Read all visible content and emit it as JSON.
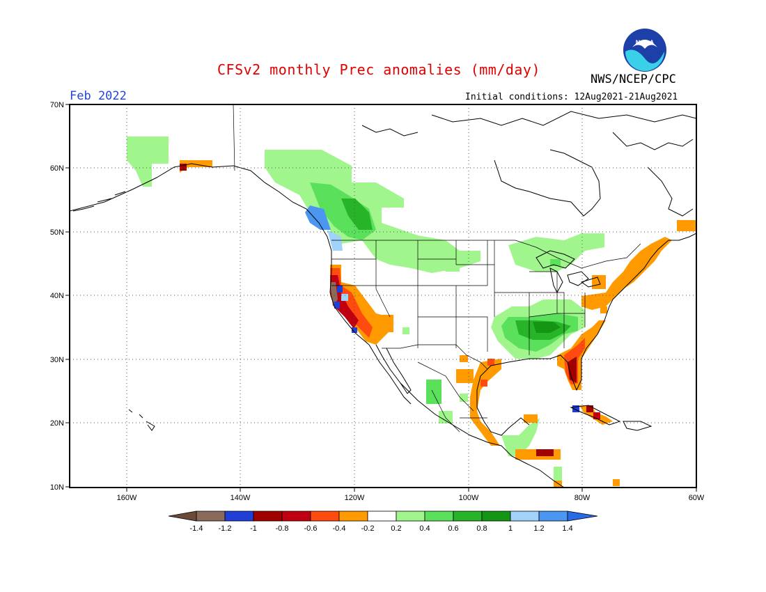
{
  "title": "CFSv2 monthly Prec anomalies (mm/day)",
  "organization": "NWS/NCEP/CPC",
  "logo_text": "NOAA",
  "valid_month": "Feb 2022",
  "initial_conditions": "Initial conditions: 12Aug2021-21Aug2021",
  "map": {
    "lon_range": [
      -170,
      -60
    ],
    "lat_range": [
      10,
      70
    ],
    "lat_labels": [
      "70N",
      "60N",
      "50N",
      "40N",
      "30N",
      "20N",
      "10N"
    ],
    "lon_labels": [
      "160W",
      "140W",
      "120W",
      "100W",
      "80W",
      "60W"
    ],
    "anomaly_regions": [
      {
        "region": "Alaska interior",
        "class": "0.2-0.4"
      },
      {
        "region": "Pacific Northwest / British Columbia coast",
        "class": "0.6-0.8"
      },
      {
        "region": "Northern California coast",
        "class": "-1.4--1.2"
      },
      {
        "region": "Southern California / Arizona",
        "class": "-0.4--0.2"
      },
      {
        "region": "Ohio / Tennessee Valley",
        "class": "0.6-0.8"
      },
      {
        "region": "Florida peninsula",
        "class": "-1--0.8"
      },
      {
        "region": "US Northeast / Maritimes",
        "class": "-0.4--0.2"
      },
      {
        "region": "Gulf of Mexico coast",
        "class": "-0.4--0.2"
      },
      {
        "region": "Cuba / Hispaniola",
        "class": "-1--0.8"
      }
    ]
  },
  "colorbar": {
    "tick_labels": [
      "-1.4",
      "-1.2",
      "-1",
      "-0.8",
      "-0.6",
      "-0.4",
      "-0.2",
      "0.2",
      "0.4",
      "0.6",
      "0.8",
      "1",
      "1.2",
      "1.4"
    ],
    "colors": [
      "#8c6a5a",
      "#1f3fd6",
      "#a00000",
      "#c00010",
      "#ff4a10",
      "#ff9a00",
      "#ffffff",
      "#a0f58c",
      "#5ae05a",
      "#28b428",
      "#149614",
      "#a0d2fa",
      "#4a96f0"
    ],
    "low_end_color": "#6b4a3a",
    "high_end_color": "#2a6ae6"
  }
}
